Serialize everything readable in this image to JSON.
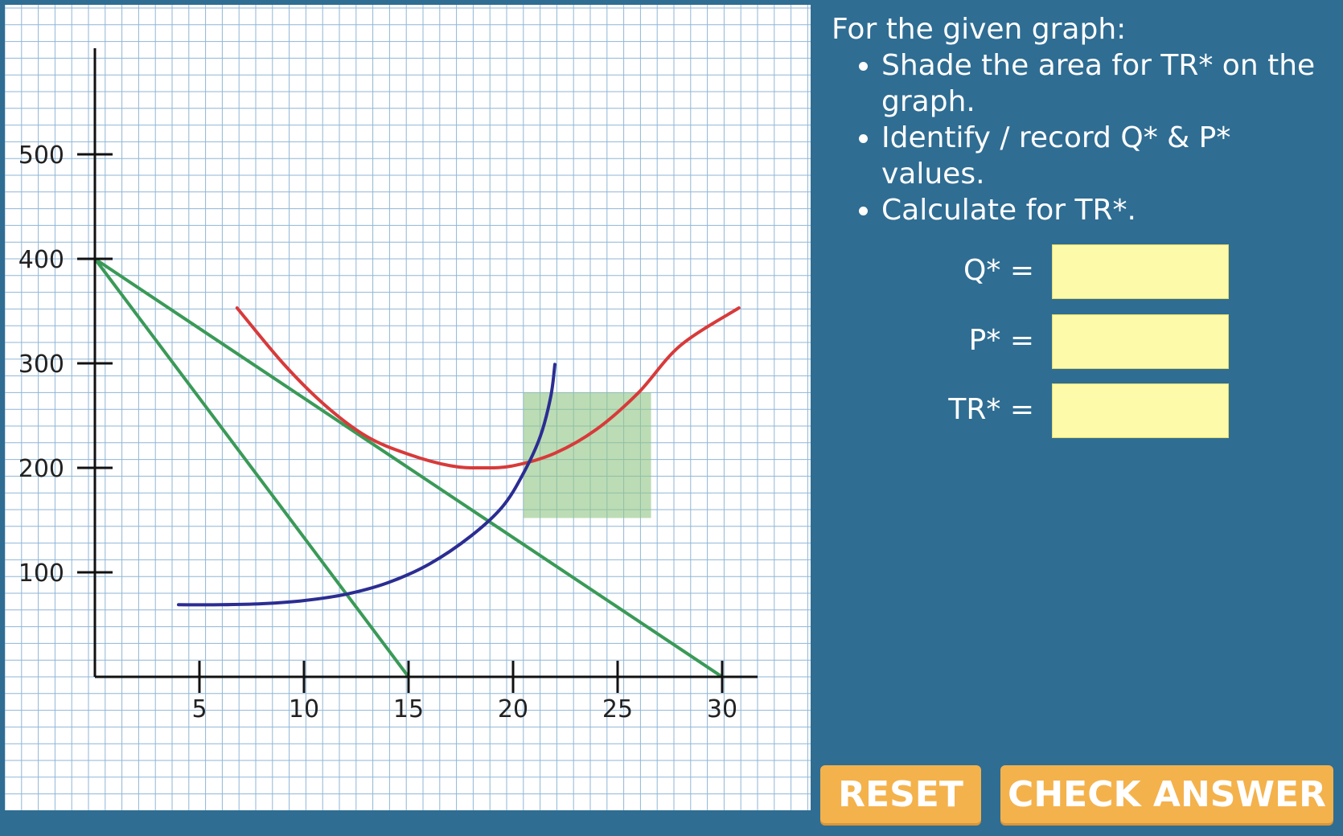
{
  "instructions": {
    "heading": "For the given graph:",
    "items": [
      "Shade the area for TR* on the graph.",
      "Identify / record  Q* & P* values.",
      "Calculate for TR*."
    ]
  },
  "fields": {
    "q_label": "Q* =",
    "p_label": "P* =",
    "tr_label": "TR* =",
    "q_value": "",
    "p_value": "",
    "tr_value": ""
  },
  "buttons": {
    "reset": "RESET",
    "check": "CHECK ANSWER"
  },
  "colors": {
    "background": "#2f6d93",
    "grid": "#8fb6d6",
    "axis": "#111111",
    "demand": "#3a9a57",
    "marginal_revenue": "#3a9a57",
    "marginal_cost": "#2b2d92",
    "average_total_cost": "#d83a3a",
    "shade": "#8fc484",
    "input_fill": "#fdfaa9",
    "button": "#f4b24c"
  },
  "chart_data": {
    "type": "line",
    "xlim": [
      0,
      32
    ],
    "ylim": [
      0,
      600
    ],
    "x_ticks": [
      5,
      10,
      15,
      20,
      25,
      30
    ],
    "x_tick_labels": [
      "5",
      "10",
      "15",
      "20",
      "25",
      "30"
    ],
    "y_ticks": [
      100,
      200,
      300,
      400,
      500
    ],
    "y_tick_labels": [
      "100",
      "200",
      "300",
      "400",
      "500"
    ],
    "grid": true,
    "series": [
      {
        "color": "#3a9a57",
        "style": "straight",
        "x": [
          0,
          30
        ],
        "y": [
          400,
          0
        ]
      },
      {
        "color": "#3a9a57",
        "style": "straight",
        "x": [
          0,
          15
        ],
        "y": [
          400,
          0
        ]
      },
      {
        "color": "#d83a3a",
        "style": "curve",
        "x": [
          6.8,
          9,
          11,
          13,
          15,
          17,
          18.5,
          20,
          22,
          24,
          26,
          28,
          30.8
        ],
        "y": [
          353,
          300,
          260,
          230,
          213,
          202,
          200,
          202,
          214,
          237,
          272,
          317,
          353
        ]
      },
      {
        "color": "#2b2d92",
        "style": "curve",
        "x": [
          4,
          6,
          8,
          10,
          12,
          14,
          16,
          18,
          19.5,
          20.5,
          21.3,
          21.8,
          22
        ],
        "y": [
          69,
          69,
          70,
          73,
          79,
          90,
          108,
          135,
          163,
          195,
          230,
          268,
          299
        ]
      }
    ],
    "shaded_region": {
      "x": [
        20.5,
        26.6
      ],
      "y": [
        152,
        272
      ]
    }
  }
}
